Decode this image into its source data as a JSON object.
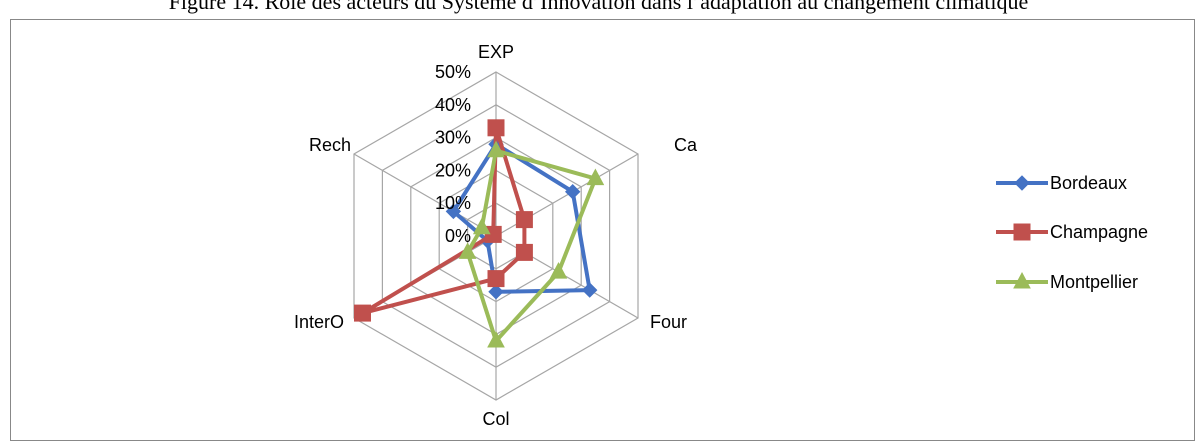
{
  "caption": "Figure 14. Rôle des acteurs du Système d’Innovation dans l’adaptation au changement climatique",
  "chart_data": {
    "type": "radar",
    "axes": [
      "EXP",
      "Ca",
      "Four",
      "Col",
      "InterO",
      "Rech"
    ],
    "rlim": [
      0,
      0.5
    ],
    "ticks": [
      "0%",
      "10%",
      "20%",
      "30%",
      "40%",
      "50%"
    ],
    "grid": true,
    "legend_position": "right",
    "series": [
      {
        "name": "Bordeaux",
        "color": "#4472C4",
        "marker": "diamond",
        "values": [
          0.28,
          0.27,
          0.33,
          0.17,
          0.03,
          0.15
        ]
      },
      {
        "name": "Champagne",
        "color": "#C0504D",
        "marker": "square",
        "values": [
          0.33,
          0.1,
          0.1,
          0.13,
          0.47,
          0.01
        ]
      },
      {
        "name": "Montpellier",
        "color": "#9BBB59",
        "marker": "triangle",
        "values": [
          0.26,
          0.35,
          0.22,
          0.32,
          0.1,
          0.05
        ]
      }
    ]
  }
}
